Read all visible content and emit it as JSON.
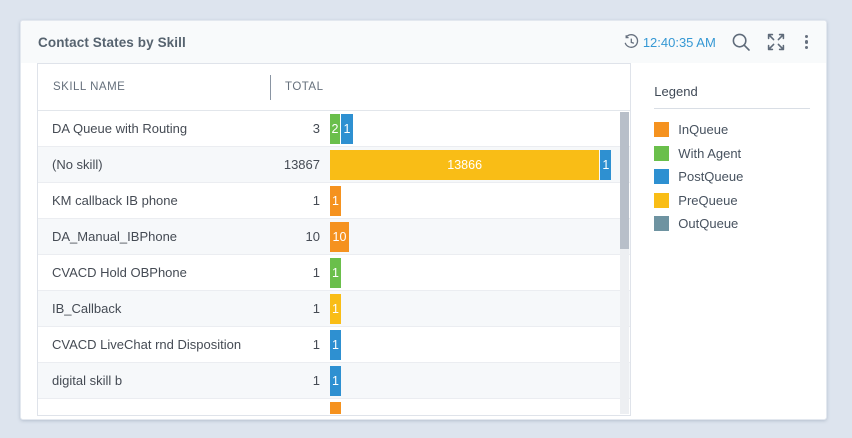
{
  "page": {
    "background": "#dde4ee"
  },
  "widget": {
    "title": "Contact States by Skill",
    "toolbar": {
      "time": "12:40:35 AM",
      "time_color": "#3598d4",
      "icons": [
        "history-clock-icon",
        "search-icon",
        "expand-icon",
        "kebab-menu-icon"
      ]
    }
  },
  "colors": {
    "InQueue": "#f5921f",
    "WithAgent": "#6abf4b",
    "PostQueue": "#2e90d1",
    "PreQueue": "#f9bd16",
    "OutQueue": "#6e93a1"
  },
  "table": {
    "columns": [
      "SKILL NAME",
      "TOTAL"
    ],
    "rows": [
      {
        "skill": "DA Queue with Routing",
        "total": "3",
        "segments": [
          {
            "state": "WithAgent",
            "label": "2",
            "w": 10
          },
          {
            "state": "PostQueue",
            "label": "1",
            "w": 12
          }
        ]
      },
      {
        "skill": "(No skill)",
        "total": "13867",
        "segments": [
          {
            "state": "PreQueue",
            "label": "13866",
            "grow": true
          },
          {
            "state": "PostQueue",
            "label": "1",
            "w": 11
          }
        ]
      },
      {
        "skill": "KM callback IB phone",
        "total": "1",
        "segments": [
          {
            "state": "InQueue",
            "label": "1",
            "w": 11
          }
        ]
      },
      {
        "skill": "DA_Manual_IBPhone",
        "total": "10",
        "segments": [
          {
            "state": "InQueue",
            "label": "10",
            "w": 19
          }
        ]
      },
      {
        "skill": "CVACD Hold OBPhone",
        "total": "1",
        "segments": [
          {
            "state": "WithAgent",
            "label": "1",
            "w": 11
          }
        ]
      },
      {
        "skill": "IB_Callback",
        "total": "1",
        "segments": [
          {
            "state": "PreQueue",
            "label": "1",
            "w": 11
          }
        ]
      },
      {
        "skill": "CVACD LiveChat rnd Disposition",
        "total": "1",
        "segments": [
          {
            "state": "PostQueue",
            "label": "1",
            "w": 11
          }
        ]
      },
      {
        "skill": "digital skill b",
        "total": "1",
        "segments": [
          {
            "state": "PostQueue",
            "label": "1",
            "w": 11
          }
        ]
      },
      {
        "skill": "",
        "total": "",
        "partial": true,
        "segments": [
          {
            "state": "InQueue",
            "label": "",
            "w": 11
          }
        ]
      }
    ]
  },
  "legend": {
    "title": "Legend",
    "items": [
      {
        "label": "InQueue",
        "state": "InQueue"
      },
      {
        "label": "With Agent",
        "state": "WithAgent"
      },
      {
        "label": "PostQueue",
        "state": "PostQueue"
      },
      {
        "label": "PreQueue",
        "state": "PreQueue"
      },
      {
        "label": "OutQueue",
        "state": "OutQueue"
      }
    ]
  }
}
